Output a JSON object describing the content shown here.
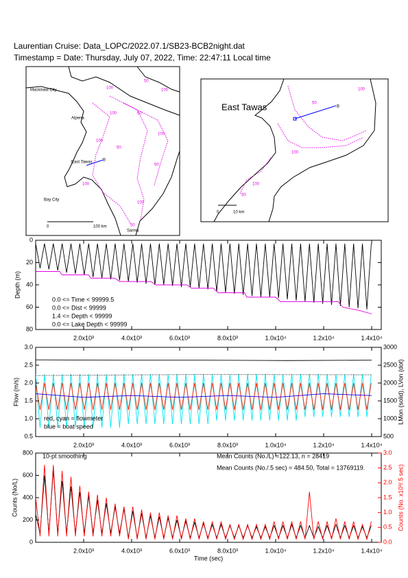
{
  "header": {
    "title": "Laurentian Cruise: Data_LOPC/2022.07.1/SB23-BCB2night.dat",
    "timestamp": "Timestamp = Date: Thursday, July 07, 2022, Time: 22:47:11 Local time"
  },
  "maps": {
    "left": {
      "places": [
        "Mackinaw City",
        "Alpena",
        "East Tawas",
        "Bay City",
        "Sarnia"
      ],
      "track_label": "B",
      "contour_labels": [
        "100",
        "50",
        "100",
        "100",
        "50",
        "100",
        "50",
        "100",
        "50",
        "100",
        "100",
        "50"
      ],
      "scale": [
        "0",
        "100 km"
      ]
    },
    "right": {
      "place": "East Tawas",
      "track_label": "B",
      "contour_labels": [
        "100",
        "50",
        "100",
        "100",
        "50"
      ],
      "scale": [
        "0",
        "10 km"
      ]
    }
  },
  "chart_data": [
    {
      "type": "line",
      "y_label": "Depth (m)",
      "xlim": [
        0,
        14400
      ],
      "ylim": [
        0,
        80
      ],
      "invert_y": true,
      "yticks": [
        0,
        20,
        40,
        60,
        80
      ],
      "xticks": [
        {
          "value": 2000,
          "label": "2.0x10³"
        },
        {
          "value": 4000,
          "label": "4.0x10³"
        },
        {
          "value": 6000,
          "label": "6.0x10³"
        },
        {
          "value": 8000,
          "label": "8.0x10³"
        },
        {
          "value": 10000,
          "label": "1.0x10⁴"
        },
        {
          "value": 12000,
          "label": "1.2x10⁴"
        },
        {
          "value": 14000,
          "label": "1.4x10⁴"
        }
      ],
      "annotations": [
        "0.0 <= Time < 99999.5",
        "0.0 <= Dist < 99999",
        "1.4 <= Depth < 99999",
        "0.0 <= Lake Depth < 99999"
      ],
      "x": [
        0,
        184,
        368,
        552,
        736,
        920,
        1104,
        1288,
        1472,
        1656,
        1840,
        2024,
        2208,
        2392,
        2576,
        2760,
        2944,
        3128,
        3312,
        3496,
        3680,
        3864,
        4048,
        4232,
        4416,
        4600,
        4784,
        4968,
        5152,
        5336,
        5520,
        5704,
        5888,
        6072,
        6256,
        6440,
        6624,
        6808,
        6992,
        7176,
        7360,
        7544,
        7728,
        7912,
        8096,
        8280,
        8464,
        8648,
        8832,
        9016,
        9200,
        9384,
        9568,
        9752,
        9936,
        10120,
        10304,
        10488,
        10672,
        10856,
        11040,
        11224,
        11408,
        11592,
        11776,
        11960,
        12144,
        12328,
        12512,
        12696,
        12880,
        13064,
        13248,
        13432,
        13616,
        13800,
        13984
      ],
      "series": [
        {
          "color": "#000000",
          "values": [
            3,
            25,
            3,
            26,
            3,
            27,
            3,
            29,
            3,
            30,
            3,
            31,
            3,
            33,
            3,
            34,
            3,
            35,
            3,
            36,
            3,
            37,
            3,
            38,
            3,
            39,
            3,
            40,
            3,
            40,
            3,
            41,
            3,
            42,
            3,
            42,
            3,
            43,
            3,
            44,
            3,
            46,
            3,
            47,
            3,
            48,
            3,
            49,
            3,
            50,
            3,
            51,
            3,
            51,
            3,
            52,
            3,
            53,
            3,
            54,
            3,
            55,
            3,
            56,
            3,
            57,
            3,
            58,
            3,
            59,
            3,
            60,
            3,
            61,
            3,
            62,
            3
          ]
        },
        {
          "color": "#e000e0",
          "x": [
            0,
            1000,
            1100,
            2200,
            2300,
            3300,
            3500,
            4800,
            5000,
            6300,
            6500,
            7400,
            7600,
            8700,
            8800,
            10000,
            10200,
            12600,
            12800,
            13500,
            14000
          ],
          "values": [
            28,
            28,
            31,
            31,
            34,
            34,
            37,
            37,
            40,
            40,
            43,
            43,
            47,
            47,
            51,
            51,
            55,
            55,
            60,
            63,
            66
          ]
        }
      ]
    },
    {
      "type": "line",
      "y_label": "Flow (m/s)",
      "y2_label": "LMon (solid), LVon (dot)",
      "xlim": [
        0,
        14400
      ],
      "ylim": [
        0.5,
        3
      ],
      "yticks": [
        0.5,
        {
          "value": 1,
          "label": "1.0"
        },
        1.5,
        {
          "value": 2,
          "label": "2.0"
        },
        2.5,
        {
          "value": 3,
          "label": "3.0"
        }
      ],
      "y2lim": [
        500,
        3000
      ],
      "y2ticks": [
        500,
        1000,
        1500,
        2000,
        2500,
        3000
      ],
      "xticks": [
        {
          "value": 2000,
          "label": "2.0x10³"
        },
        {
          "value": 4000,
          "label": "4.0x10³"
        },
        {
          "value": 6000,
          "label": "6.0x10³"
        },
        {
          "value": 8000,
          "label": "8.0x10³"
        },
        {
          "value": 10000,
          "label": "1.0x10⁴"
        },
        {
          "value": 12000,
          "label": "1.2x10⁴"
        },
        {
          "value": 14000,
          "label": "1.4x10⁴"
        }
      ],
      "annotations": [
        "red, cyan = flowmeter",
        "blue = boat speed"
      ],
      "x": [
        0,
        184,
        368,
        552,
        736,
        920,
        1104,
        1288,
        1472,
        1656,
        1840,
        2024,
        2208,
        2392,
        2576,
        2760,
        2944,
        3128,
        3312,
        3496,
        3680,
        3864,
        4048,
        4232,
        4416,
        4600,
        4784,
        4968,
        5152,
        5336,
        5520,
        5704,
        5888,
        6072,
        6256,
        6440,
        6624,
        6808,
        6992,
        7176,
        7360,
        7544,
        7728,
        7912,
        8096,
        8280,
        8464,
        8648,
        8832,
        9016,
        9200,
        9384,
        9568,
        9752,
        9936,
        10120,
        10304,
        10488,
        10672,
        10856,
        11040,
        11224,
        11408,
        11592,
        11776,
        11960,
        12144,
        12328,
        12512,
        12696,
        12880,
        13064,
        13248,
        13432,
        13616,
        13800,
        13984
      ],
      "series": [
        {
          "color": "#00e5ee",
          "values": [
            2.25,
            0.75,
            2.25,
            0.75,
            2.25,
            0.75,
            2.25,
            0.75,
            2.25,
            0.75,
            2.25,
            0.75,
            2.25,
            0.75,
            2.25,
            0.75,
            2.25,
            0.75,
            2.25,
            0.75,
            2.25,
            0.85,
            2.25,
            0.85,
            2.25,
            0.85,
            2.25,
            0.85,
            2.25,
            0.85,
            2.25,
            0.85,
            2.25,
            0.85,
            2.25,
            0.85,
            2.25,
            0.85,
            2.25,
            0.85,
            2.25,
            0.95,
            2.25,
            0.95,
            2.25,
            0.95,
            2.25,
            0.95,
            2.25,
            0.95,
            2.25,
            0.95,
            2.25,
            0.95,
            2.25,
            0.95,
            2.25,
            0.95,
            2.25,
            0.95,
            2.25,
            1.05,
            2.25,
            1.05,
            2.25,
            1.05,
            2.25,
            1.05,
            2.25,
            1.05,
            2.25,
            1.05,
            2.25,
            1.05,
            2.25,
            1.05,
            2.25
          ]
        },
        {
          "color": "#ff2000",
          "values": [
            2,
            1.25,
            2,
            1.25,
            2,
            1.25,
            2,
            1.25,
            2,
            1.25,
            2,
            1.25,
            2,
            1.25,
            2,
            1.25,
            2,
            1.25,
            2,
            1.25,
            2,
            1.25,
            2,
            1.25,
            2,
            1.25,
            2,
            1.25,
            2,
            1.25,
            2,
            1.25,
            2,
            1.25,
            2,
            1.25,
            2,
            1.25,
            2,
            1.25,
            2,
            1.25,
            2,
            1.25,
            2,
            1.25,
            2,
            1.25,
            2,
            1.25,
            2,
            1.25,
            2,
            1.25,
            2,
            1.25,
            2,
            1.25,
            2,
            1.25,
            2,
            1.25,
            2,
            1.25,
            2,
            1.25,
            2,
            1.25,
            2,
            1.25,
            2,
            1.25,
            2,
            1.25,
            2,
            1.25,
            2
          ]
        },
        {
          "color": "#0000ff",
          "x": [
            0,
            2000,
            4000,
            6000,
            8000,
            10000,
            12000,
            14000
          ],
          "values": [
            1.7,
            1.6,
            1.65,
            1.6,
            1.65,
            1.6,
            1.7,
            1.65
          ]
        },
        {
          "color": "#000000",
          "axis": "y2",
          "x": [
            0,
            3500,
            7000,
            10500,
            14000
          ],
          "values": [
            2650,
            2640,
            2640,
            2630,
            2640
          ]
        },
        {
          "color": "#000000",
          "axis": "y2",
          "style": "dotted",
          "x": [
            0,
            7000,
            14000
          ],
          "values": [
            2210,
            2240,
            2230
          ]
        }
      ]
    },
    {
      "type": "line",
      "y_label": "Counts (No/L)",
      "y2_label": "Counts (No. x10³/.5 sec)",
      "x_label": "Time (sec)",
      "xlim": [
        0,
        14400
      ],
      "ylim": [
        0,
        800
      ],
      "yticks": [
        0,
        200,
        400,
        600,
        800
      ],
      "y2lim": [
        0,
        3
      ],
      "y2_color": "#ff0000",
      "y2ticks": [
        {
          "value": 0,
          "label": "0.0"
        },
        0.5,
        {
          "value": 1,
          "label": "1.0"
        },
        1.5,
        {
          "value": 2,
          "label": "2.0"
        },
        2.5,
        {
          "value": 3,
          "label": "3.0"
        }
      ],
      "xticks": [
        {
          "value": 2000,
          "label": "2.0x10³"
        },
        {
          "value": 4000,
          "label": "4.0x10³"
        },
        {
          "value": 6000,
          "label": "6.0x10³"
        },
        {
          "value": 8000,
          "label": "8.0x10³"
        },
        {
          "value": 10000,
          "label": "1.0x10⁴"
        },
        {
          "value": 12000,
          "label": "1.2x10⁴"
        },
        {
          "value": 14000,
          "label": "1.4x10⁴"
        }
      ],
      "annotations": [
        "10-pt smoothing",
        "Mean Counts (No./L) =122.13, n = 28419",
        "Mean Counts (No./.5 sec) = 484.50, Total = 13769119."
      ],
      "x": [
        0,
        184,
        368,
        552,
        736,
        920,
        1104,
        1288,
        1472,
        1656,
        1840,
        2024,
        2208,
        2392,
        2576,
        2760,
        2944,
        3128,
        3312,
        3496,
        3680,
        3864,
        4048,
        4232,
        4416,
        4600,
        4784,
        4968,
        5152,
        5336,
        5520,
        5704,
        5888,
        6072,
        6256,
        6440,
        6624,
        6808,
        6992,
        7176,
        7360,
        7544,
        7728,
        7912,
        8096,
        8280,
        8464,
        8648,
        8832,
        9016,
        9200,
        9384,
        9568,
        9752,
        9936,
        10120,
        10304,
        10488,
        10672,
        10856,
        11040,
        11224,
        11408,
        11592,
        11776,
        11960,
        12144,
        12328,
        12512,
        12696,
        12880,
        13064,
        13248,
        13432,
        13616,
        13800,
        13984
      ],
      "series": [
        {
          "color": "#000000",
          "values": [
            250,
            80,
            600,
            80,
            650,
            80,
            550,
            80,
            500,
            80,
            450,
            80,
            420,
            80,
            380,
            80,
            350,
            80,
            320,
            80,
            300,
            40,
            280,
            40,
            260,
            40,
            240,
            40,
            230,
            40,
            220,
            40,
            200,
            40,
            190,
            40,
            180,
            40,
            170,
            40,
            160,
            40,
            160,
            40,
            150,
            40,
            150,
            40,
            150,
            40,
            140,
            40,
            140,
            40,
            150,
            40,
            150,
            40,
            160,
            40,
            150,
            40,
            150,
            40,
            140,
            40,
            150,
            40,
            160,
            40,
            150,
            40,
            150,
            40,
            140,
            40,
            150
          ]
        },
        {
          "color": "#ff0000",
          "axis": "y2",
          "values": [
            1.5,
            0.2,
            2.6,
            0.2,
            2.6,
            0.2,
            2.4,
            0.2,
            2.2,
            0.2,
            1.9,
            0.2,
            1.7,
            0.2,
            1.6,
            0.2,
            1.5,
            0.2,
            1.3,
            0.2,
            1.2,
            0.1,
            1.2,
            0.1,
            1.1,
            0.1,
            1.0,
            0.1,
            1.0,
            0.1,
            0.9,
            0.1,
            0.9,
            0.1,
            0.8,
            0.1,
            0.8,
            0.1,
            0.7,
            0.1,
            0.7,
            0.1,
            0.7,
            0.1,
            0.6,
            0.1,
            0.6,
            0.1,
            0.6,
            0.1,
            0.6,
            0.1,
            0.6,
            0.1,
            0.7,
            0.1,
            0.7,
            0.1,
            0.7,
            0.1,
            0.7,
            0.1,
            1.7,
            0.1,
            0.7,
            0.1,
            0.7,
            0.1,
            0.8,
            0.1,
            0.7,
            0.1,
            0.7,
            0.1,
            0.6,
            0.1,
            0.7
          ]
        }
      ]
    }
  ]
}
